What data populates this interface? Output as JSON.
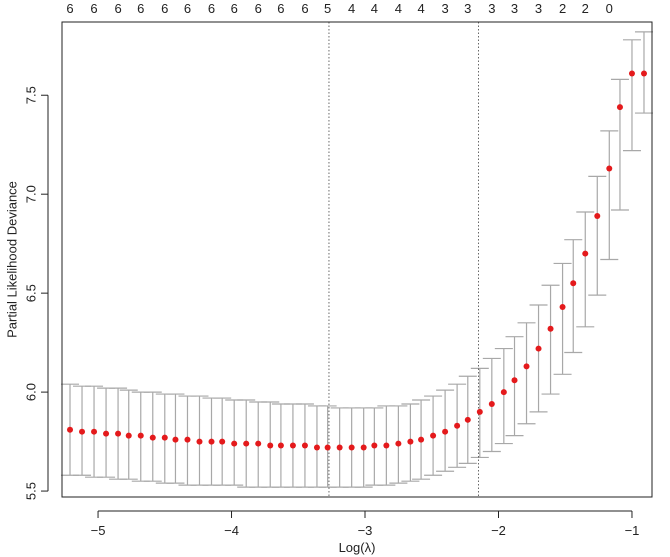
{
  "chart_data": {
    "type": "scatter",
    "title": "",
    "xlabel": "Log(λ)",
    "ylabel": "Partial Likelihood Deviance",
    "xlim": [
      -5.27,
      -0.85
    ],
    "ylim": [
      5.47,
      7.87
    ],
    "xticks": [
      -5,
      -4,
      -3,
      -2,
      -1
    ],
    "yticks": [
      5.5,
      6.0,
      6.5,
      7.0,
      7.5
    ],
    "top_axis_labels": [
      "6",
      "6",
      "6",
      "6",
      "6",
      "6",
      "6",
      "6",
      "6",
      "6",
      "6",
      "5",
      "4",
      "4",
      "4",
      "4",
      "3",
      "3",
      "3",
      "3",
      "3",
      "2",
      "2",
      "0"
    ],
    "vlines": [
      -3.27,
      -2.15
    ],
    "grid": false,
    "series": [
      {
        "color": "#e41a1c",
        "error_bar_color": "#a8a8a8",
        "x": [
          -5.21,
          -5.12,
          -5.03,
          -4.94,
          -4.85,
          -4.77,
          -4.68,
          -4.59,
          -4.5,
          -4.42,
          -4.33,
          -4.24,
          -4.15,
          -4.07,
          -3.98,
          -3.89,
          -3.8,
          -3.71,
          -3.63,
          -3.54,
          -3.45,
          -3.36,
          -3.28,
          -3.19,
          -3.1,
          -3.01,
          -2.93,
          -2.84,
          -2.75,
          -2.66,
          -2.58,
          -2.49,
          -2.4,
          -2.31,
          -2.23,
          -2.14,
          -2.05,
          -1.96,
          -1.88,
          -1.79,
          -1.7,
          -1.61,
          -1.52,
          -1.44,
          -1.35,
          -1.26,
          -1.17,
          -1.09,
          -1.0,
          -0.91
        ],
        "y": [
          5.81,
          5.8,
          5.8,
          5.79,
          5.79,
          5.78,
          5.78,
          5.77,
          5.77,
          5.76,
          5.76,
          5.75,
          5.75,
          5.75,
          5.74,
          5.74,
          5.74,
          5.73,
          5.73,
          5.73,
          5.73,
          5.72,
          5.72,
          5.72,
          5.72,
          5.72,
          5.73,
          5.73,
          5.74,
          5.75,
          5.76,
          5.78,
          5.8,
          5.83,
          5.86,
          5.9,
          5.94,
          6.0,
          6.06,
          6.13,
          6.22,
          6.32,
          6.43,
          6.55,
          6.7,
          6.89,
          7.13,
          7.44,
          7.61,
          7.61
        ],
        "lower": [
          5.58,
          5.58,
          5.57,
          5.57,
          5.56,
          5.56,
          5.55,
          5.55,
          5.54,
          5.54,
          5.53,
          5.53,
          5.53,
          5.53,
          5.53,
          5.52,
          5.52,
          5.52,
          5.52,
          5.52,
          5.52,
          5.52,
          5.52,
          5.52,
          5.52,
          5.52,
          5.53,
          5.53,
          5.54,
          5.55,
          5.56,
          5.58,
          5.6,
          5.62,
          5.64,
          5.67,
          5.7,
          5.74,
          5.78,
          5.84,
          5.9,
          5.99,
          6.09,
          6.2,
          6.33,
          6.49,
          6.67,
          6.92,
          7.22,
          7.41
        ],
        "upper": [
          6.04,
          6.03,
          6.03,
          6.02,
          6.02,
          6.01,
          6.0,
          6.0,
          5.99,
          5.99,
          5.98,
          5.98,
          5.97,
          5.97,
          5.96,
          5.96,
          5.95,
          5.95,
          5.94,
          5.94,
          5.94,
          5.93,
          5.93,
          5.92,
          5.92,
          5.92,
          5.92,
          5.93,
          5.93,
          5.94,
          5.96,
          5.98,
          6.01,
          6.04,
          6.08,
          6.12,
          6.17,
          6.22,
          6.28,
          6.35,
          6.44,
          6.54,
          6.65,
          6.77,
          6.91,
          7.09,
          7.32,
          7.58,
          7.78,
          7.82
        ]
      }
    ]
  }
}
